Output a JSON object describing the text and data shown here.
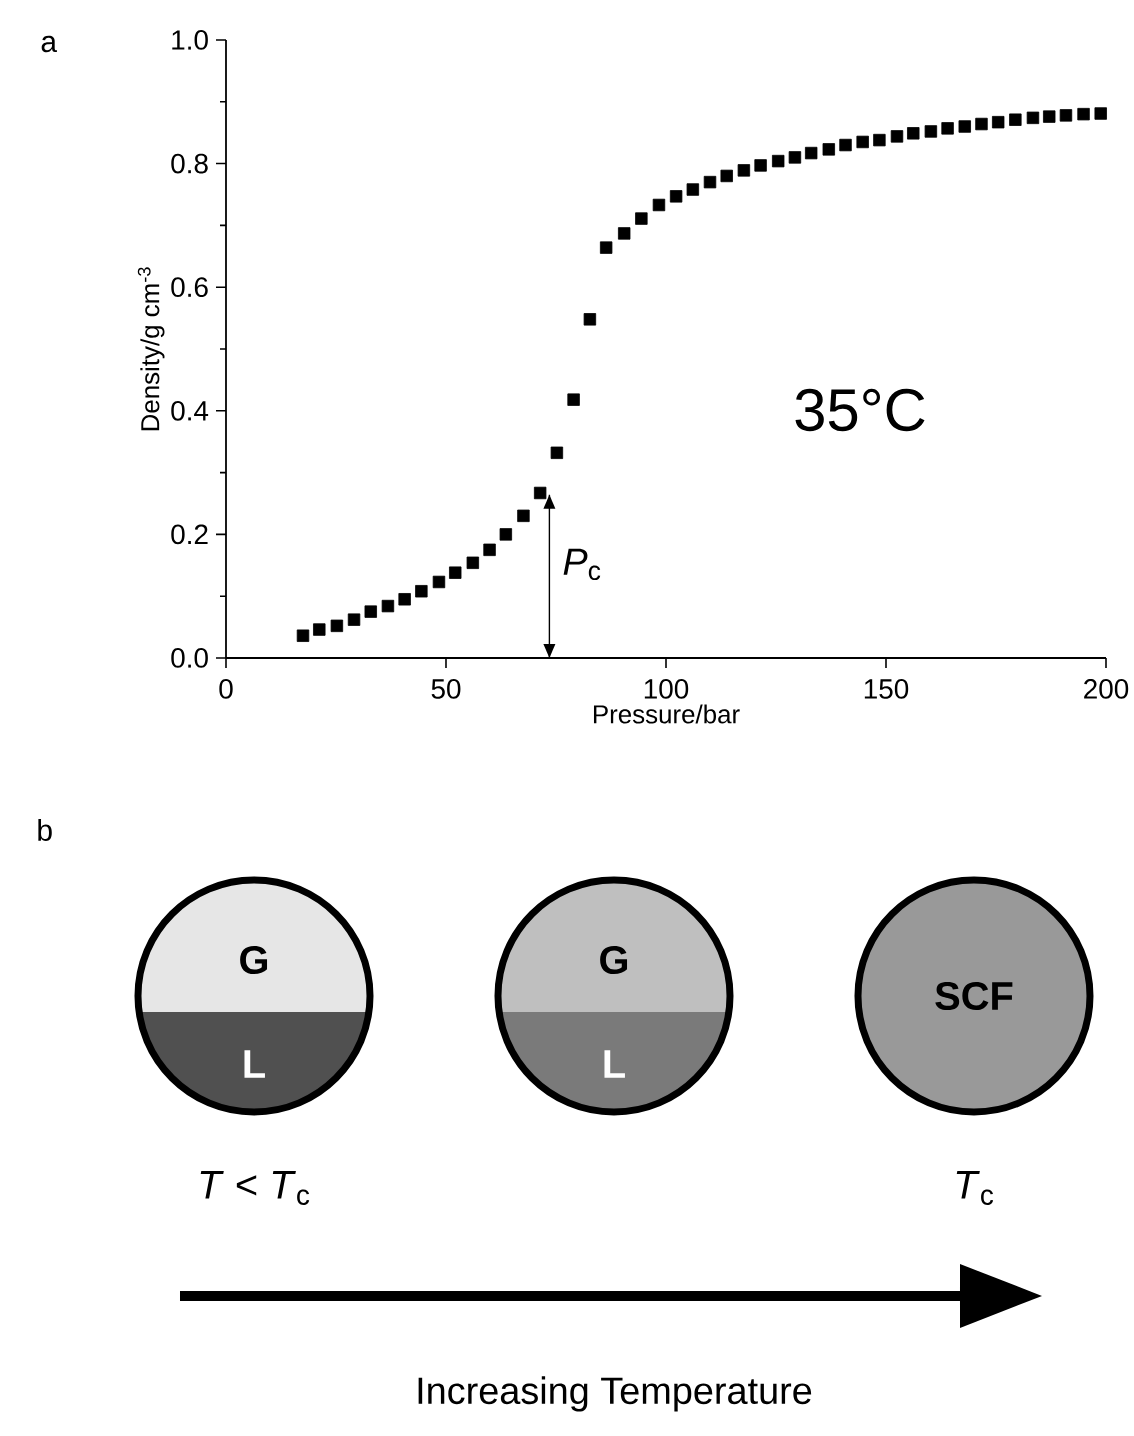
{
  "chart_data": [
    {
      "type": "scatter",
      "xlabel": "Pressure/bar",
      "ylabel": "Density/g cm$^{-3}$",
      "xlim": [
        0,
        200
      ],
      "ylim": [
        0,
        1
      ],
      "xticks": [
        0,
        50,
        100,
        150,
        200
      ],
      "yticks": [
        {
          "value": 0,
          "label": "0.0"
        },
        {
          "value": 0.2,
          "label": "0.2"
        },
        {
          "value": 0.4,
          "label": "0.4"
        },
        {
          "value": 0.6,
          "label": "0.6"
        },
        {
          "value": 0.8,
          "label": "0.8"
        },
        {
          "value": 1,
          "label": "1.0"
        }
      ],
      "marker": "square",
      "ref_lines": [
        {
          "axis": "x",
          "value": 73.5,
          "label": "*P*$_{c}$"
        }
      ],
      "series": [
        {
          "color": "#000000",
          "x": [
            17.5,
            21.2,
            25.2,
            29.1,
            32.9,
            36.8,
            40.6,
            44.4,
            48.4,
            52.1,
            56.1,
            59.9,
            63.6,
            67.6,
            71.4,
            75.2,
            79,
            82.7,
            86.4,
            90.5,
            94.4,
            98.4,
            102.3,
            106.1,
            110,
            113.8,
            117.7,
            121.5,
            125.5,
            129.3,
            133,
            137,
            140.8,
            144.7,
            148.5,
            152.5,
            156.2,
            160.2,
            164,
            167.9,
            171.7,
            175.5,
            179.4,
            183.4,
            187.1,
            190.9,
            194.9,
            198.8
          ],
          "values": [
            0.036,
            0.046,
            0.052,
            0.062,
            0.075,
            0.084,
            0.095,
            0.108,
            0.123,
            0.138,
            0.154,
            0.175,
            0.2,
            0.23,
            0.267,
            0.332,
            0.418,
            0.548,
            0.664,
            0.687,
            0.711,
            0.733,
            0.747,
            0.758,
            0.77,
            0.78,
            0.789,
            0.797,
            0.804,
            0.81,
            0.817,
            0.823,
            0.83,
            0.835,
            0.838,
            0.844,
            0.849,
            0.852,
            0.857,
            0.86,
            0.864,
            0.867,
            0.871,
            0.874,
            0.876,
            0.878,
            0.88,
            0.881
          ]
        }
      ],
      "annotations": [
        "a",
        "35°C"
      ]
    },
    {
      "type": "other",
      "annotations": [
        "b",
        "G",
        "L",
        "G",
        "L",
        "SCF",
        "*T* < *T*$_{c}$",
        "*T*$_{c}$",
        "Increasing Temperature"
      ]
    }
  ]
}
